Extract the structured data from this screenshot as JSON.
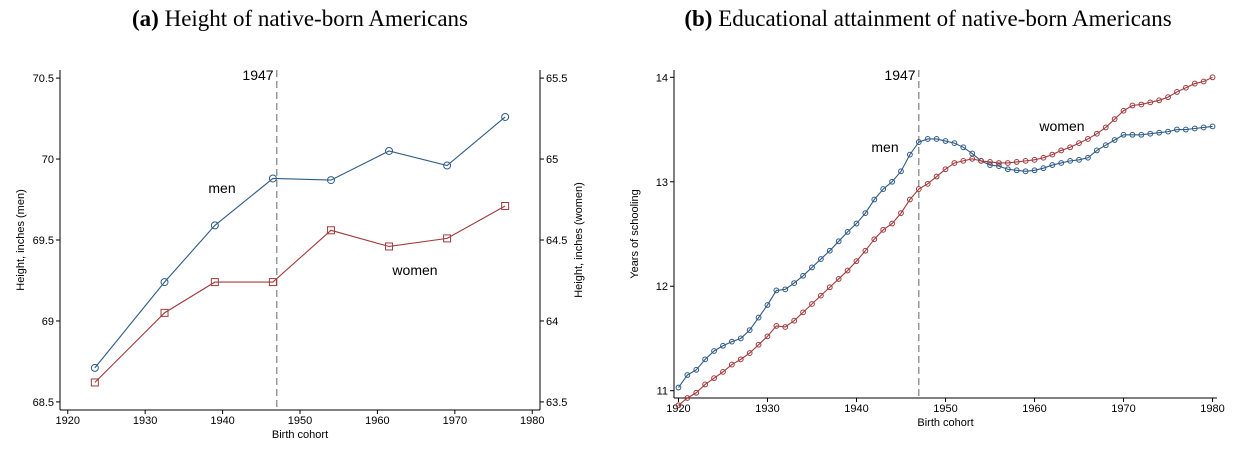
{
  "chart_data": [
    {
      "type": "line",
      "label": "(a)",
      "title": "Height of native-born Americans",
      "xlabel": "Birth cohort",
      "ylabel": "Height, inches (men)",
      "y2label": "Height, inches (women)",
      "x": [
        1923.5,
        1932.5,
        1939,
        1946.5,
        1954,
        1961.5,
        1969,
        1976.5
      ],
      "series": [
        {
          "name": "men",
          "color": "#2f5b87",
          "marker": "circle",
          "values": [
            68.71,
            69.24,
            69.59,
            69.88,
            69.87,
            70.05,
            69.96,
            70.26
          ]
        },
        {
          "name": "women",
          "color": "#a23a3c",
          "marker": "square",
          "axis": "y2",
          "values": [
            63.62,
            64.05,
            64.24,
            64.24,
            64.56,
            64.46,
            64.51,
            64.71
          ]
        }
      ],
      "vline": 1947,
      "xlim": [
        1919,
        1981
      ],
      "xticks": [
        1920,
        1930,
        1940,
        1950,
        1960,
        1970,
        1980
      ],
      "ylim": [
        68.45,
        70.55
      ],
      "yticks": [
        68.5,
        69,
        69.5,
        70,
        70.5
      ],
      "y2lim": [
        63.45,
        65.55
      ],
      "y2ticks": [
        63.5,
        64,
        64.5,
        65,
        65.5
      ]
    },
    {
      "type": "line",
      "label": "(b)",
      "title": "Educational attainment of native-born Americans",
      "xlabel": "Birth cohort",
      "ylabel": "Years of schooling",
      "x": [
        1920,
        1921,
        1922,
        1923,
        1924,
        1925,
        1926,
        1927,
        1928,
        1929,
        1930,
        1931,
        1932,
        1933,
        1934,
        1935,
        1936,
        1937,
        1938,
        1939,
        1940,
        1941,
        1942,
        1943,
        1944,
        1945,
        1946,
        1947,
        1948,
        1949,
        1950,
        1951,
        1952,
        1953,
        1954,
        1955,
        1956,
        1957,
        1958,
        1959,
        1960,
        1961,
        1962,
        1963,
        1964,
        1965,
        1966,
        1967,
        1968,
        1969,
        1970,
        1971,
        1972,
        1973,
        1974,
        1975,
        1976,
        1977,
        1978,
        1979,
        1980
      ],
      "series": [
        {
          "name": "men",
          "color": "#2f5b87",
          "marker": "circle",
          "values": [
            11.03,
            11.15,
            11.2,
            11.3,
            11.38,
            11.43,
            11.47,
            11.5,
            11.58,
            11.7,
            11.82,
            11.96,
            11.97,
            12.03,
            12.1,
            12.18,
            12.26,
            12.34,
            12.43,
            12.52,
            12.6,
            12.7,
            12.83,
            12.93,
            13.0,
            13.1,
            13.26,
            13.38,
            13.41,
            13.41,
            13.39,
            13.37,
            13.33,
            13.27,
            13.2,
            13.16,
            13.15,
            13.12,
            13.11,
            13.1,
            13.11,
            13.13,
            13.16,
            13.18,
            13.2,
            13.21,
            13.23,
            13.3,
            13.35,
            13.4,
            13.45,
            13.45,
            13.45,
            13.46,
            13.47,
            13.48,
            13.5,
            13.5,
            13.51,
            13.52,
            13.53
          ]
        },
        {
          "name": "women",
          "color": "#a23a3c",
          "marker": "circle",
          "values": [
            10.86,
            10.93,
            10.98,
            11.06,
            11.12,
            11.18,
            11.25,
            11.3,
            11.36,
            11.44,
            11.52,
            11.62,
            11.61,
            11.67,
            11.75,
            11.83,
            11.91,
            11.99,
            12.07,
            12.15,
            12.24,
            12.34,
            12.45,
            12.54,
            12.6,
            12.7,
            12.83,
            12.93,
            12.98,
            13.05,
            13.12,
            13.18,
            13.2,
            13.22,
            13.2,
            13.19,
            13.18,
            13.18,
            13.19,
            13.2,
            13.21,
            13.23,
            13.26,
            13.3,
            13.33,
            13.37,
            13.41,
            13.46,
            13.52,
            13.6,
            13.68,
            13.73,
            13.74,
            13.76,
            13.78,
            13.81,
            13.86,
            13.9,
            13.94,
            13.96,
            14.0
          ]
        }
      ],
      "vline": 1947,
      "xlim": [
        1919.5,
        1980.5
      ],
      "xticks": [
        1920,
        1930,
        1940,
        1950,
        1960,
        1970,
        1980
      ],
      "ylim": [
        10.93,
        14.07
      ],
      "yticks": [
        11,
        12,
        13,
        14
      ]
    }
  ]
}
